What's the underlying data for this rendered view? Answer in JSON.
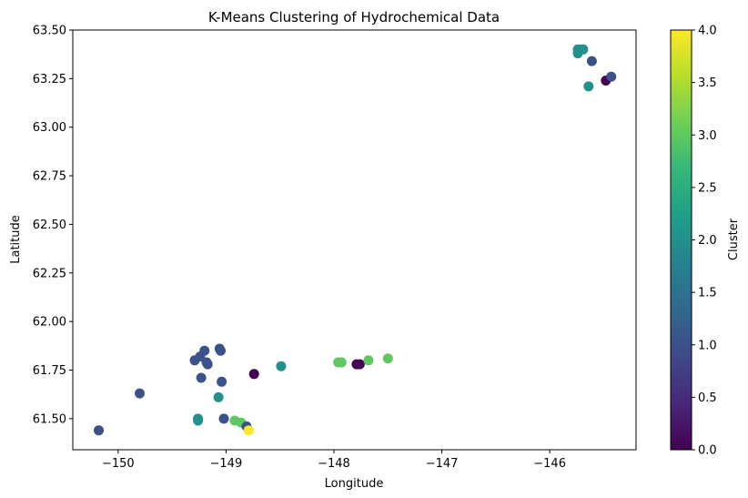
{
  "chart_data": {
    "type": "scatter",
    "title": "K-Means Clustering of Hydrochemical Data",
    "xlabel": "Longitude",
    "ylabel": "Latitude",
    "xlim": [
      -150.42,
      -145.2
    ],
    "ylim": [
      61.34,
      63.5
    ],
    "xticks": [
      -150,
      -149,
      -148,
      -147,
      -146
    ],
    "xtick_labels": [
      "−150",
      "−149",
      "−148",
      "−147",
      "−146"
    ],
    "yticks": [
      61.5,
      61.75,
      62.0,
      62.25,
      62.5,
      62.75,
      63.0,
      63.25,
      63.5
    ],
    "ytick_labels": [
      "61.50",
      "61.75",
      "62.00",
      "62.25",
      "62.50",
      "62.75",
      "63.00",
      "63.25",
      "63.50"
    ],
    "grid": false,
    "colorbar": {
      "label": "Cluster",
      "range": [
        0,
        4
      ],
      "ticks": [
        0,
        0.5,
        1,
        1.5,
        2,
        2.5,
        3,
        3.5,
        4
      ],
      "tick_labels": [
        "0.0",
        "0.5",
        "1.0",
        "1.5",
        "2.0",
        "2.5",
        "3.0",
        "3.5",
        "4.0"
      ],
      "colormap": "viridis",
      "colormap_stops": [
        "#440154",
        "#482878",
        "#3e4989",
        "#31688e",
        "#26828e",
        "#1f9e89",
        "#35b779",
        "#6ece58",
        "#b5de2b",
        "#fde725"
      ]
    },
    "points": [
      {
        "x": -150.18,
        "y": 61.44,
        "cluster": 1
      },
      {
        "x": -149.8,
        "y": 61.63,
        "cluster": 1
      },
      {
        "x": -149.29,
        "y": 61.8,
        "cluster": 1
      },
      {
        "x": -149.24,
        "y": 61.82,
        "cluster": 1
      },
      {
        "x": -149.2,
        "y": 61.85,
        "cluster": 1
      },
      {
        "x": -149.23,
        "y": 61.71,
        "cluster": 1
      },
      {
        "x": -149.18,
        "y": 61.79,
        "cluster": 1
      },
      {
        "x": -149.17,
        "y": 61.78,
        "cluster": 1
      },
      {
        "x": -149.06,
        "y": 61.86,
        "cluster": 1
      },
      {
        "x": -149.05,
        "y": 61.85,
        "cluster": 1
      },
      {
        "x": -149.04,
        "y": 61.69,
        "cluster": 1
      },
      {
        "x": -149.07,
        "y": 61.61,
        "cluster": 2
      },
      {
        "x": -149.26,
        "y": 61.5,
        "cluster": 2
      },
      {
        "x": -149.26,
        "y": 61.49,
        "cluster": 2
      },
      {
        "x": -149.02,
        "y": 61.5,
        "cluster": 1
      },
      {
        "x": -148.92,
        "y": 61.49,
        "cluster": 3
      },
      {
        "x": -148.86,
        "y": 61.48,
        "cluster": 3
      },
      {
        "x": -148.81,
        "y": 61.46,
        "cluster": 1
      },
      {
        "x": -148.79,
        "y": 61.44,
        "cluster": 4
      },
      {
        "x": -148.74,
        "y": 61.73,
        "cluster": 0
      },
      {
        "x": -148.49,
        "y": 61.77,
        "cluster": 2
      },
      {
        "x": -147.96,
        "y": 61.79,
        "cluster": 3
      },
      {
        "x": -147.93,
        "y": 61.79,
        "cluster": 3
      },
      {
        "x": -147.79,
        "y": 61.78,
        "cluster": 0
      },
      {
        "x": -147.76,
        "y": 61.78,
        "cluster": 0
      },
      {
        "x": -147.68,
        "y": 61.8,
        "cluster": 3
      },
      {
        "x": -147.5,
        "y": 61.81,
        "cluster": 3
      },
      {
        "x": -145.74,
        "y": 63.4,
        "cluster": 2
      },
      {
        "x": -145.71,
        "y": 63.4,
        "cluster": 2
      },
      {
        "x": -145.69,
        "y": 63.4,
        "cluster": 2
      },
      {
        "x": -145.74,
        "y": 63.38,
        "cluster": 2
      },
      {
        "x": -145.61,
        "y": 63.34,
        "cluster": 1
      },
      {
        "x": -145.64,
        "y": 63.21,
        "cluster": 2
      },
      {
        "x": -145.48,
        "y": 63.24,
        "cluster": 0
      },
      {
        "x": -145.43,
        "y": 63.26,
        "cluster": 1
      }
    ]
  }
}
